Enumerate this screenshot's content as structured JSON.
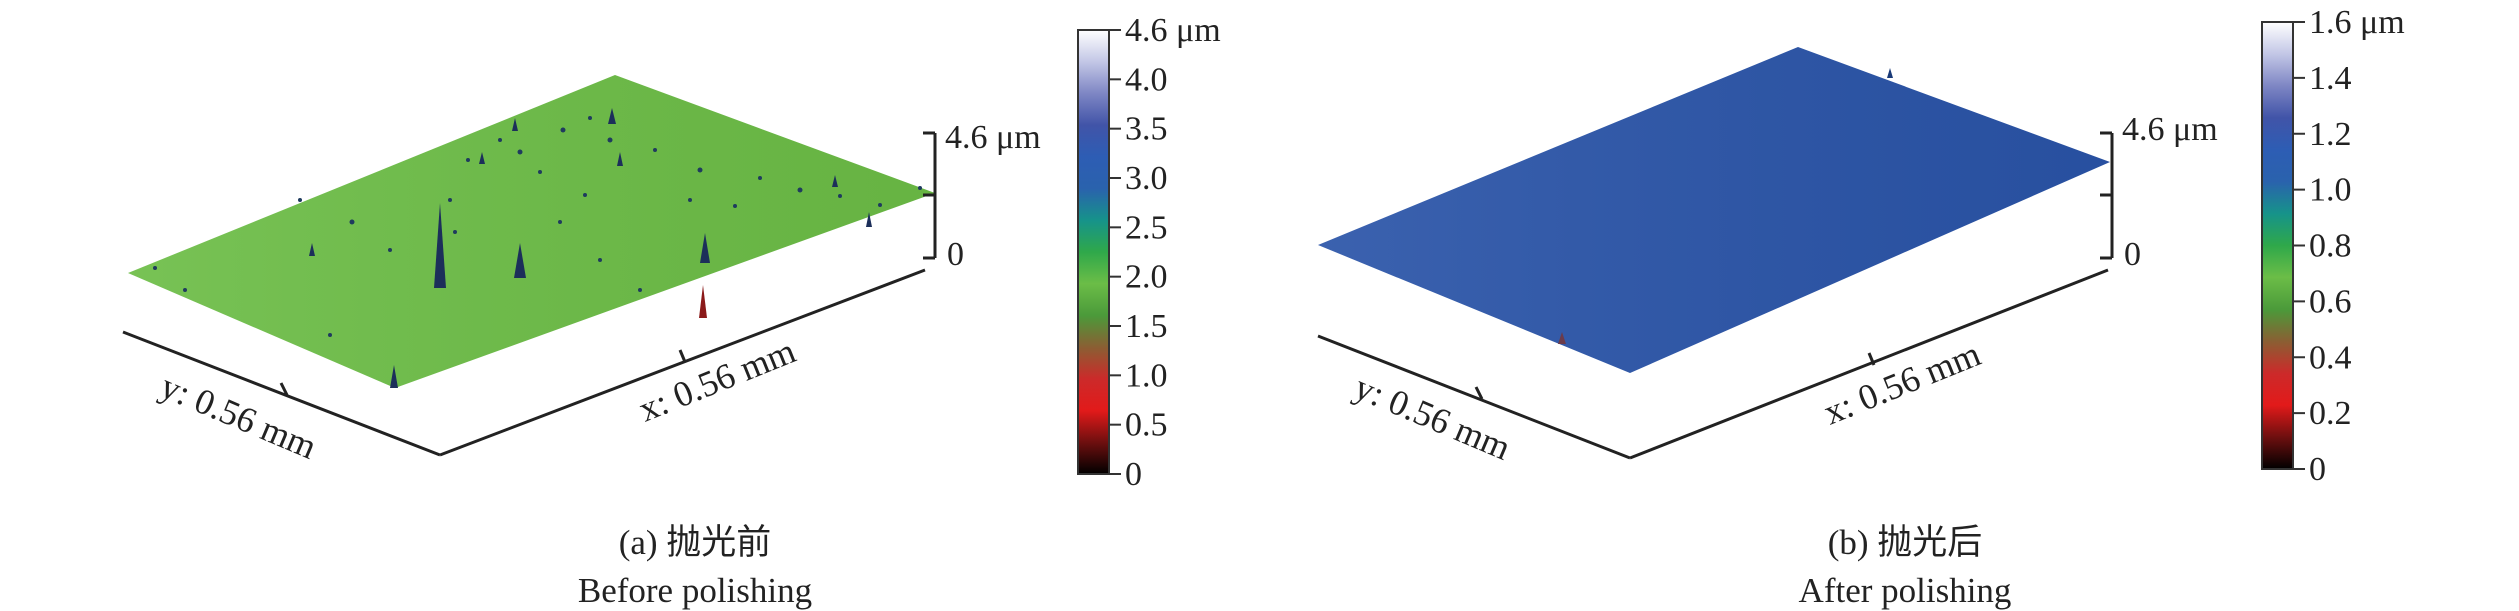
{
  "panel_a": {
    "caption_label": "(a) 抛光前",
    "caption_en": "Before polishing",
    "surface_color": "#6cbd46",
    "y_axis_label": "y: 0.56 mm",
    "x_axis_label": "x: 0.56 mm",
    "z_top_label": "4.6 μm",
    "z_bottom_label": "0",
    "colorbar_ticks": [
      "4.6 μm",
      "4.0",
      "3.5",
      "3.0",
      "2.5",
      "2.0",
      "1.5",
      "1.0",
      "0.5",
      "0"
    ]
  },
  "panel_b": {
    "caption_label": "(b) 抛光后",
    "caption_en": "After polishing",
    "surface_color": "#2a54a8",
    "y_axis_label": "y: 0.56 mm",
    "x_axis_label": "x: 0.56 mm",
    "z_top_label": "4.6 μm",
    "z_bottom_label": "0",
    "colorbar_ticks": [
      "1.6 μm",
      "1.4",
      "1.2",
      "1.0",
      "0.8",
      "0.6",
      "0.4",
      "0.2",
      "0"
    ]
  },
  "colorbar_gradient": [
    "#ffffff",
    "#c3c7e6",
    "#7e86c4",
    "#4154a8",
    "#2d5db4",
    "#2a62ad",
    "#16938a",
    "#2fa84a",
    "#6bbd47",
    "#4b9a3a",
    "#8a5f33",
    "#cc2a2a",
    "#e21a1a",
    "#6d0f0f",
    "#000000"
  ]
}
